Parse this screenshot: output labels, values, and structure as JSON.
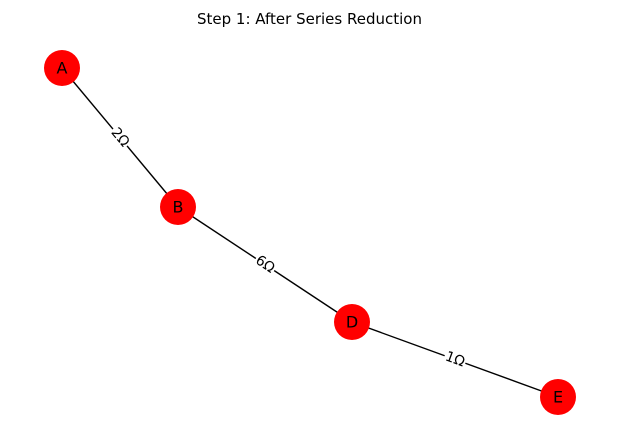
{
  "title": "Step 1: After Series Reduction",
  "colors": {
    "node_fill": "#ff0000",
    "edge": "#000000",
    "text": "#000000",
    "background": "#ffffff"
  },
  "nodes": [
    {
      "id": "A",
      "label": "A"
    },
    {
      "id": "B",
      "label": "B"
    },
    {
      "id": "D",
      "label": "D"
    },
    {
      "id": "E",
      "label": "E"
    }
  ],
  "edges": [
    {
      "from": "A",
      "to": "B",
      "label": "2Ω"
    },
    {
      "from": "B",
      "to": "D",
      "label": "6Ω"
    },
    {
      "from": "D",
      "to": "E",
      "label": "1Ω"
    }
  ]
}
